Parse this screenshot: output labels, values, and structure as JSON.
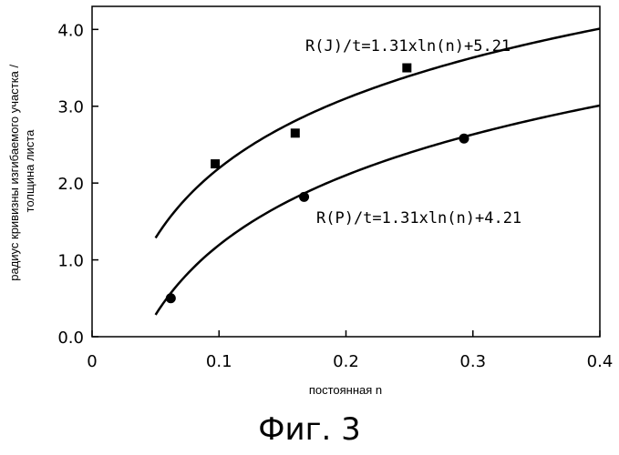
{
  "chart_data": {
    "type": "scatter",
    "xlabel": "постоянная n",
    "ylabel_lines": [
      "радиус кривизны изгибаемого участка /",
      "толщина листа"
    ],
    "xlim": [
      0,
      0.4
    ],
    "ylim": [
      0,
      4.3
    ],
    "x_ticks": [
      0,
      0.1,
      0.2,
      0.3,
      0.4
    ],
    "x_tick_labels": [
      "0",
      "0.1",
      "0.2",
      "0.3",
      "0.4"
    ],
    "y_ticks": [
      0,
      1,
      2,
      3,
      4
    ],
    "y_tick_labels": [
      "0.0",
      "1.0",
      "2.0",
      "3.0",
      "4.0"
    ],
    "grid": false,
    "series": [
      {
        "marker": "square",
        "points": [
          [
            0.097,
            2.25
          ],
          [
            0.16,
            2.65
          ],
          [
            0.248,
            3.5
          ]
        ],
        "fit": {
          "a": 1.31,
          "b": 5.21,
          "x_range": [
            0.05,
            0.4
          ]
        },
        "annotation": "R(J)/t=1.31xln(n)+5.21"
      },
      {
        "marker": "circle",
        "points": [
          [
            0.062,
            0.5
          ],
          [
            0.167,
            1.82
          ],
          [
            0.293,
            2.58
          ]
        ],
        "fit": {
          "a": 1.31,
          "b": 4.21,
          "x_range": [
            0.05,
            0.4
          ]
        },
        "annotation": "R(P)/t=1.31xln(n)+4.21"
      }
    ]
  },
  "caption": "Фиг. 3"
}
